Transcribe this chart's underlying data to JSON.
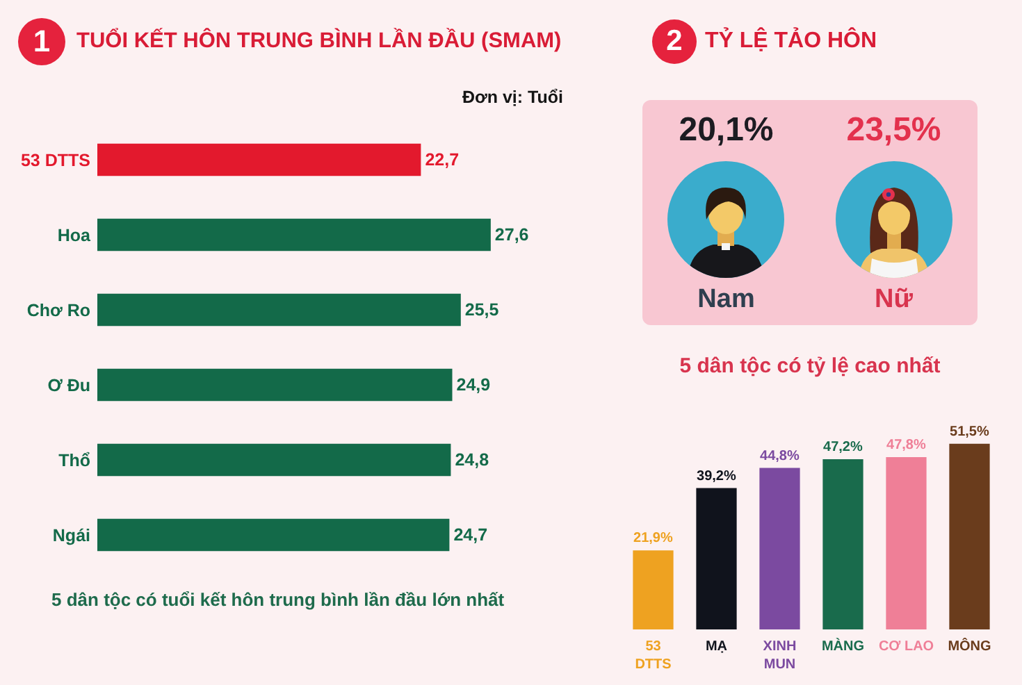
{
  "chart_data": [
    {
      "type": "bar",
      "orientation": "horizontal",
      "title": "TUỔI KẾT HÔN TRUNG BÌNH LẦN ĐẦU (SMAM)",
      "subtitle": "Đơn vị: Tuổi",
      "categories": [
        "53 DTTS",
        "Hoa",
        "Chơ Ro",
        "Ơ Đu",
        "Thổ",
        "Ngái"
      ],
      "values": [
        22.7,
        27.6,
        25.5,
        24.9,
        24.8,
        24.7
      ],
      "colors": [
        "#e3192d",
        "#136a49",
        "#136a49",
        "#136a49",
        "#136a49",
        "#136a49"
      ],
      "value_labels": [
        "22,7",
        "27,6",
        "25,5",
        "24,9",
        "24,8",
        "24,7"
      ],
      "annotations": [
        "1",
        "5 dân tộc có tuổi kết hôn trung bình lần đầu lớn nhất"
      ],
      "tick_labels": "y"
    },
    {
      "type": "other",
      "title": "TỶ LỆ TẢO HÔN",
      "categories": [
        "Nam",
        "Nữ"
      ],
      "value_labels": [
        "20,1%",
        "23,5%"
      ],
      "annotations": [
        "2"
      ]
    },
    {
      "type": "bar",
      "title": "5 dân tộc có tỷ lệ cao nhất",
      "categories": [
        "53 DTTS",
        "MẠ",
        "XINH MUN",
        "MÀNG",
        "CƠ LAO",
        "MÔNG"
      ],
      "values": [
        21.9,
        39.2,
        44.8,
        47.2,
        47.8,
        51.5
      ],
      "colors": [
        "#eea221",
        "#10131c",
        "#7b4aa0",
        "#196b4c",
        "#ef7f97",
        "#6a3c1c"
      ],
      "value_labels": [
        "21,9%",
        "39,2%",
        "44,8%",
        "47,2%",
        "47,8%",
        "51,5%"
      ],
      "tick_labels": "x"
    }
  ]
}
